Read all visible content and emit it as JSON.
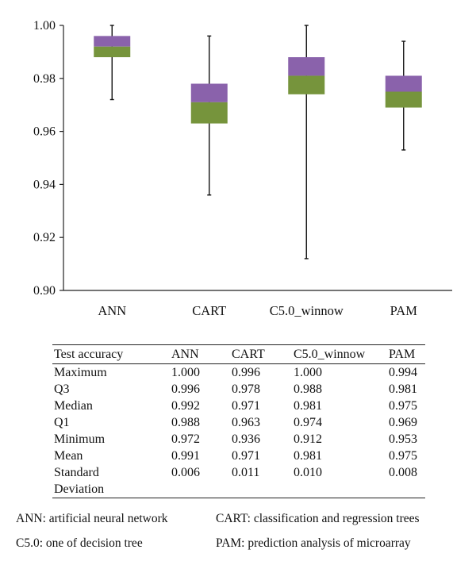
{
  "chart_data": {
    "type": "boxplot",
    "categories": [
      "ANN",
      "CART",
      "C5.0_winnow",
      "PAM"
    ],
    "ylim": [
      0.9,
      1.0
    ],
    "yticks": [
      "0.90",
      "0.92",
      "0.94",
      "0.96",
      "0.98",
      "1.00"
    ],
    "ytick_values": [
      0.9,
      0.92,
      0.94,
      0.96,
      0.98,
      1.0
    ],
    "boxes": [
      {
        "category": "ANN",
        "max": 1.0,
        "q3": 0.996,
        "median": 0.992,
        "q1": 0.988,
        "min": 0.972
      },
      {
        "category": "CART",
        "max": 0.996,
        "q3": 0.978,
        "median": 0.971,
        "q1": 0.963,
        "min": 0.936
      },
      {
        "category": "C5.0_winnow",
        "max": 1.0,
        "q3": 0.988,
        "median": 0.981,
        "q1": 0.974,
        "min": 0.912
      },
      {
        "category": "PAM",
        "max": 0.994,
        "q3": 0.981,
        "median": 0.975,
        "q1": 0.969,
        "min": 0.953
      }
    ],
    "upper_box_color": "#8a62ab",
    "lower_box_color": "#76943c"
  },
  "table": {
    "header": [
      "Test accuracy",
      "ANN",
      "CART",
      "C5.0_winnow",
      "PAM"
    ],
    "rows": [
      [
        "Maximum",
        "1.000",
        "0.996",
        "1.000",
        "0.994"
      ],
      [
        "Q3",
        "0.996",
        "0.978",
        "0.988",
        "0.981"
      ],
      [
        "Median",
        "0.992",
        "0.971",
        "0.981",
        "0.975"
      ],
      [
        "Q1",
        "0.988",
        "0.963",
        "0.974",
        "0.969"
      ],
      [
        "Minimum",
        "0.972",
        "0.936",
        "0.912",
        "0.953"
      ],
      [
        "Mean",
        "0.991",
        "0.971",
        "0.981",
        "0.975"
      ]
    ],
    "last_row": {
      "label_line1": "Standard",
      "label_line2": "Deviation",
      "values": [
        "0.006",
        "0.011",
        "0.010",
        "0.008"
      ]
    }
  },
  "legend": {
    "ann": "ANN: artificial neural network",
    "cart": "CART: classification and regression trees",
    "c50": "C5.0: one of decision tree",
    "pam": "PAM: prediction analysis of microarray"
  }
}
